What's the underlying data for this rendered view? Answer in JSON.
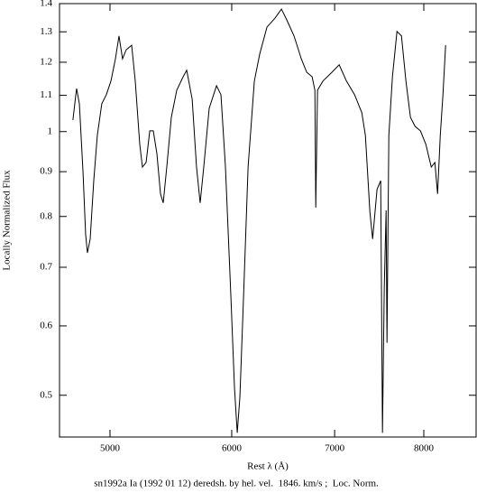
{
  "chart_data": {
    "type": "line",
    "xlabel": "Rest λ (Å)",
    "ylabel": "Locally Normalized Flux",
    "caption": "sn1992a Ia (1992 01 12) deredsh. by hel. vel.  1846. km/s ;  Loc. Norm.",
    "xscale": "log",
    "yscale": "log",
    "color": "#000000",
    "xlim": [
      4636,
      8652
    ],
    "xticks": [
      5000,
      6000,
      7000,
      8000
    ],
    "ylim": [
      0.448,
      1.4
    ],
    "yticks": [
      0.5,
      0.6,
      0.7,
      0.8,
      0.9,
      1,
      1.1,
      1.2,
      1.3,
      1.4
    ],
    "x": [
      4730,
      4756,
      4776,
      4802,
      4821,
      4834,
      4854,
      4880,
      4906,
      4939,
      4973,
      5007,
      5041,
      5068,
      5095,
      5123,
      5165,
      5193,
      5228,
      5249,
      5278,
      5307,
      5335,
      5364,
      5393,
      5415,
      5444,
      5481,
      5526,
      5579,
      5609,
      5655,
      5692,
      5723,
      5754,
      5801,
      5865,
      5904,
      5944,
      5993,
      6025,
      6050,
      6074,
      6107,
      6149,
      6207,
      6257,
      6325,
      6403,
      6464,
      6516,
      6587,
      6659,
      6713,
      6768,
      6796,
      6805,
      6823,
      6878,
      6972,
      7048,
      7125,
      7212,
      7291,
      7330,
      7380,
      7410,
      7459,
      7500,
      7520,
      7540,
      7561,
      7571,
      7592,
      7633,
      7685,
      7737,
      7789,
      7842,
      7896,
      7960,
      8025,
      8090,
      8134,
      8167,
      8200,
      8233,
      8266
    ],
    "values": [
      1.031,
      1.12,
      1.076,
      0.9,
      0.763,
      0.727,
      0.754,
      0.879,
      0.99,
      1.076,
      1.102,
      1.142,
      1.211,
      1.286,
      1.211,
      1.24,
      1.255,
      1.142,
      0.967,
      0.911,
      0.922,
      1.002,
      1.002,
      0.944,
      0.849,
      0.829,
      0.911,
      1.038,
      1.115,
      1.155,
      1.175,
      1.089,
      0.911,
      0.829,
      0.911,
      1.063,
      1.128,
      1.102,
      0.911,
      0.646,
      0.51,
      0.453,
      0.498,
      0.646,
      0.911,
      1.142,
      1.226,
      1.316,
      1.348,
      1.38,
      1.341,
      1.286,
      1.211,
      1.169,
      1.155,
      1.115,
      0.819,
      1.115,
      1.142,
      1.169,
      1.192,
      1.142,
      1.102,
      1.051,
      0.99,
      0.809,
      0.754,
      0.859,
      0.879,
      0.453,
      0.662,
      0.813,
      0.574,
      0.99,
      1.155,
      1.301,
      1.286,
      1.142,
      1.038,
      1.014,
      1.002,
      0.967,
      0.911,
      0.922,
      0.849,
      0.99,
      1.102,
      1.255
    ]
  }
}
